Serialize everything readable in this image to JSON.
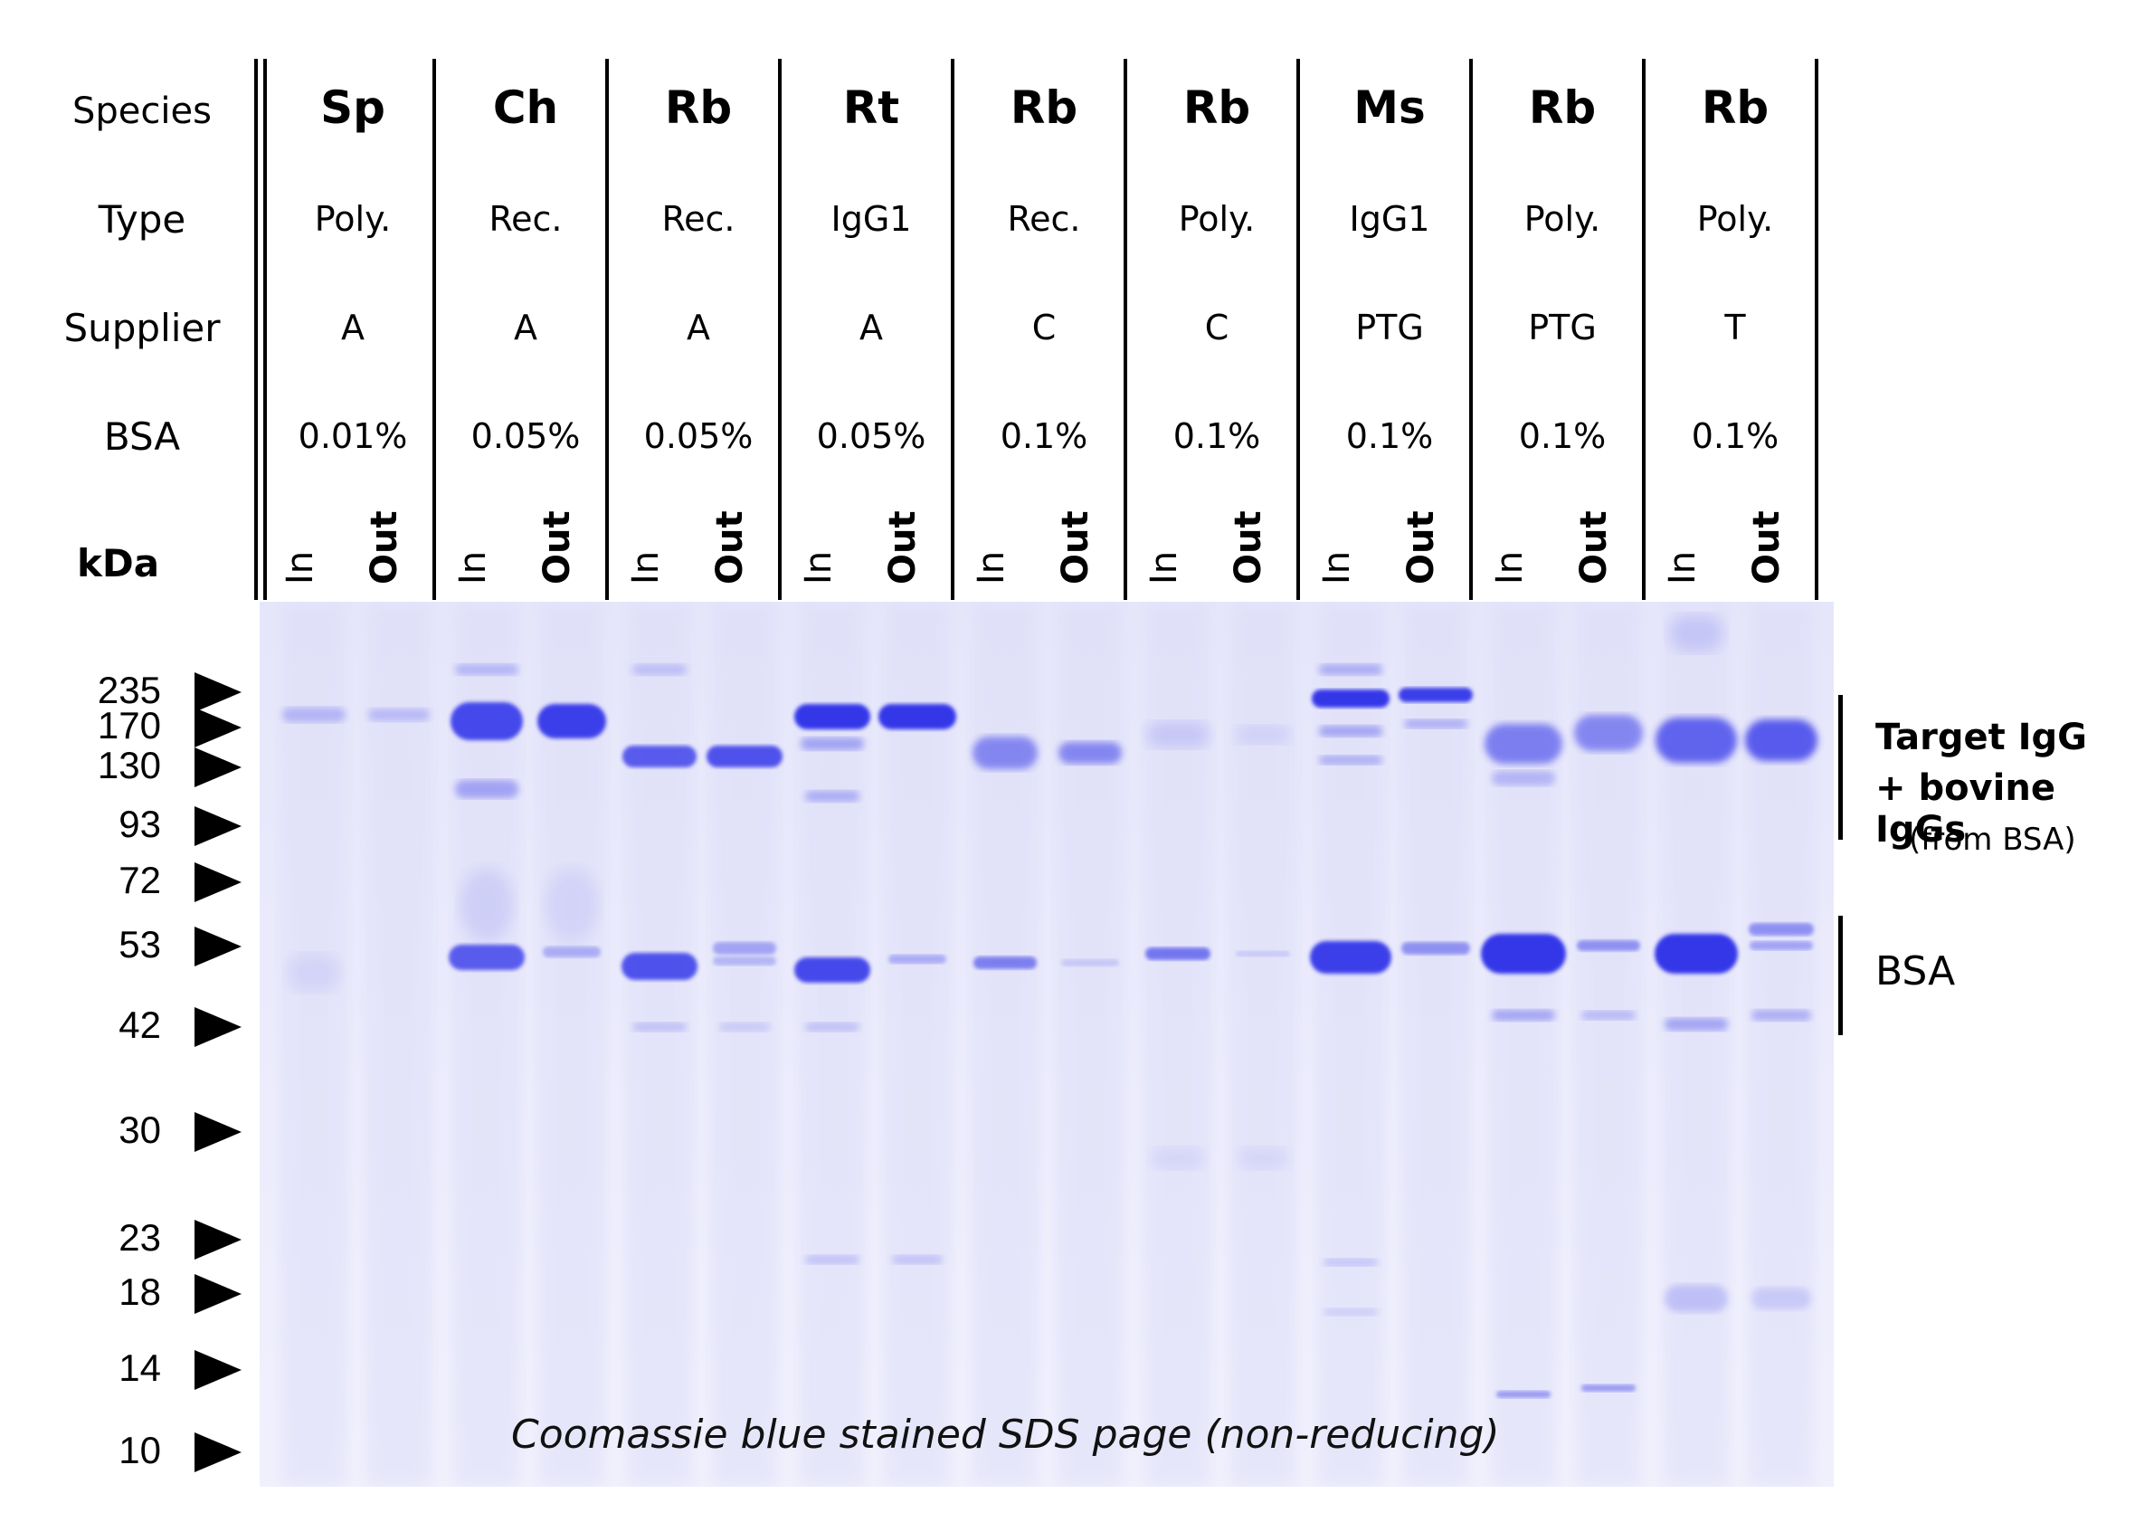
{
  "row_labels": {
    "species": "Species",
    "type": "Type",
    "supplier": "Supplier",
    "bsa": "BSA",
    "kda": "kDa"
  },
  "lanes": [
    {
      "species": "Sp",
      "type": "Poly.",
      "supplier": "A",
      "bsa": "0.01%",
      "in": "In",
      "out": "Out"
    },
    {
      "species": "Ch",
      "type": "Rec.",
      "supplier": "A",
      "bsa": "0.05%",
      "in": "In",
      "out": "Out"
    },
    {
      "species": "Rb",
      "type": "Rec.",
      "supplier": "A",
      "bsa": "0.05%",
      "in": "In",
      "out": "Out"
    },
    {
      "species": "Rt",
      "type": "IgG1",
      "supplier": "A",
      "bsa": "0.05%",
      "in": "In",
      "out": "Out"
    },
    {
      "species": "Rb",
      "type": "Rec.",
      "supplier": "C",
      "bsa": "0.1%",
      "in": "In",
      "out": "Out"
    },
    {
      "species": "Rb",
      "type": "Poly.",
      "supplier": "C",
      "bsa": "0.1%",
      "in": "In",
      "out": "Out"
    },
    {
      "species": "Ms",
      "type": "IgG1",
      "supplier": "PTG",
      "bsa": "0.1%",
      "in": "In",
      "out": "Out"
    },
    {
      "species": "Rb",
      "type": "Poly.",
      "supplier": "PTG",
      "bsa": "0.1%",
      "in": "In",
      "out": "Out"
    },
    {
      "species": "Rb",
      "type": "Poly.",
      "supplier": "T",
      "bsa": "0.1%",
      "in": "In",
      "out": "Out"
    }
  ],
  "markers": [
    "235",
    "170",
    "130",
    "93",
    "72",
    "53",
    "42",
    "30",
    "23",
    "18",
    "14",
    "10"
  ],
  "annotations": {
    "target_line1": "Target IgG",
    "target_line2": "+ bovine IgGs",
    "target_line3": "(from BSA)",
    "bsa": "BSA"
  },
  "caption": "Coomassie blue stained SDS page (non-reducing)",
  "colors": {
    "gel_background": "#e9e9fb",
    "band": "#2a2fe8",
    "ink": "#000000"
  }
}
